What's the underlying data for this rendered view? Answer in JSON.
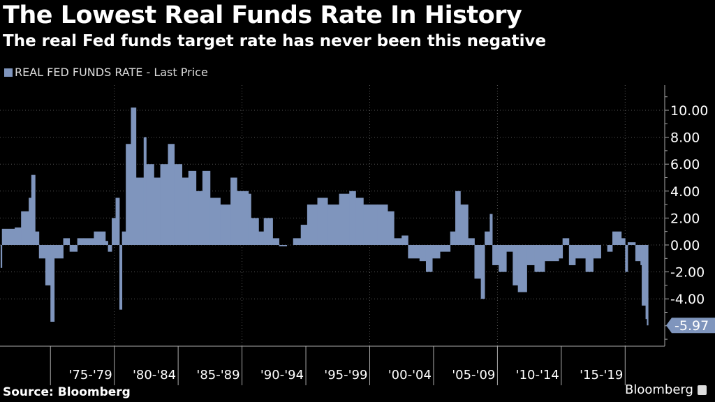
{
  "chart_data": {
    "type": "bar",
    "title": "The Lowest Real Funds Rate In History",
    "subtitle": "The real Fed funds target rate has never been this negative",
    "legend": [
      {
        "name": "REAL FED FUNDS RATE - Last Price",
        "color": "#7f95bd"
      }
    ],
    "legend_placement": "top-left",
    "xlabel": "",
    "ylabel": "",
    "xlim": [
      1971.05,
      2023.1
    ],
    "ylim": [
      -7.3,
      12
    ],
    "y_ticks": [
      10,
      8,
      6,
      4,
      2,
      0,
      -2,
      -4
    ],
    "y_tick_labels": [
      "10.00",
      "8.00",
      "6.00",
      "4.00",
      "2.00",
      "0.00",
      "-2.00",
      "-4.00"
    ],
    "x_categories": [
      "'75-'79",
      "'80-'84",
      "'85-'89",
      "'90-'94",
      "'95-'99",
      "'00-'04",
      "'05-'09",
      "'10-'14",
      "'15-'19"
    ],
    "x_category_starts": [
      1975,
      1980,
      1985,
      1990,
      1995,
      2000,
      2005,
      2010,
      2015,
      2020
    ],
    "last_value_label": "-5.97",
    "last_value": -5.97,
    "grid": true,
    "series": [
      {
        "name": "REAL FED FUNDS RATE",
        "x": [
          1971.1,
          1971.2,
          1972.2,
          1972.7,
          1973.3,
          1973.5,
          1973.8,
          1974.1,
          1974.6,
          1975.0,
          1975.3,
          1976.0,
          1976.5,
          1977.1,
          1977.6,
          1978.4,
          1979.3,
          1979.5,
          1979.8,
          1980.1,
          1980.4,
          1980.6,
          1980.9,
          1981.3,
          1981.7,
          1982.3,
          1982.5,
          1983.1,
          1983.6,
          1984.2,
          1984.7,
          1985.3,
          1985.8,
          1986.4,
          1986.9,
          1987.5,
          1988.3,
          1989.1,
          1989.6,
          1990.5,
          1990.7,
          1991.3,
          1991.7,
          1992.4,
          1992.9,
          1993.5,
          1994.0,
          1994.6,
          1995.1,
          1995.9,
          1996.7,
          1997.6,
          1998.4,
          1998.9,
          1999.5,
          2000.6,
          2001.4,
          2001.9,
          2002.5,
          2003.0,
          2003.9,
          2004.4,
          2004.9,
          2005.5,
          2006.3,
          2006.7,
          2007.1,
          2007.7,
          2008.2,
          2008.7,
          2009.0,
          2009.4,
          2009.6,
          2010.1,
          2010.7,
          2011.2,
          2011.6,
          2012.3,
          2012.9,
          2013.7,
          2014.8,
          2015.1,
          2015.6,
          2016.1,
          2016.9,
          2017.5,
          2018.1,
          2018.6,
          2019.0,
          2019.7,
          2020.0,
          2020.2,
          2020.8,
          2021.2,
          2021.3,
          2021.6,
          2021.7
        ],
        "values": [
          -1.7,
          1.2,
          1.3,
          2.5,
          3.5,
          5.2,
          1,
          -1,
          -3,
          -5.7,
          -1,
          0.5,
          -0.5,
          0.5,
          0.5,
          1,
          0.3,
          -0.5,
          2,
          3.5,
          -4.8,
          1,
          7.5,
          10.2,
          5,
          8,
          6,
          5,
          6,
          7.5,
          6,
          5,
          5.5,
          4,
          5.5,
          3.5,
          3,
          5,
          4,
          3.8,
          2,
          1,
          2,
          0.5,
          -0.1,
          0,
          0.5,
          1.5,
          3,
          3.5,
          3,
          3.8,
          4,
          3.5,
          3,
          3,
          2.5,
          0.5,
          0.7,
          -1,
          -1.2,
          -2,
          -1,
          -0.5,
          1,
          4,
          3,
          0.5,
          -2.5,
          -4,
          1,
          2.3,
          -1.5,
          -2,
          -0.5,
          -3,
          -3.5,
          -1.5,
          -2,
          -1.2,
          -1,
          0.5,
          -1.5,
          -1,
          -2,
          -1,
          0,
          -0.5,
          1,
          0.5,
          -2,
          0.2,
          -1.2,
          -1.5,
          -4.5,
          -5.5,
          -5.97
        ]
      }
    ]
  },
  "footer": {
    "source": "Source: Bloomberg",
    "brand": "Bloomberg"
  }
}
